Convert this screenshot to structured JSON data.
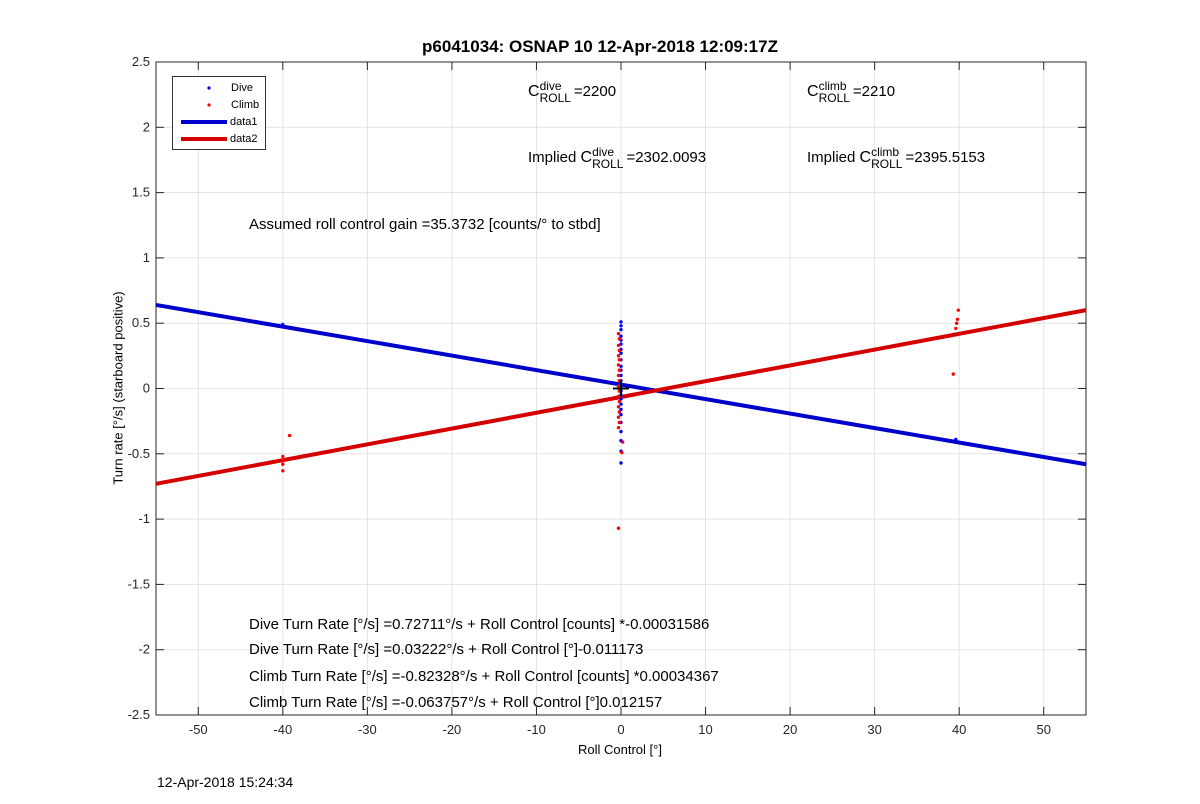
{
  "chart_data": {
    "type": "scatter",
    "title": "p6041034: OSNAP 10 12-Apr-2018 12:09:17Z",
    "xlabel": "Roll Control [°]",
    "ylabel": "Turn rate [°/s] (starboard positive)",
    "xlim": [
      -55,
      55
    ],
    "ylim": [
      -2.5,
      2.5
    ],
    "xticks": [
      -50,
      -40,
      -30,
      -20,
      -10,
      0,
      10,
      20,
      30,
      40,
      50
    ],
    "yticks": [
      -2.5,
      -2,
      -1.5,
      -1,
      -0.5,
      0,
      0.5,
      1,
      1.5,
      2,
      2.5
    ],
    "grid": true,
    "legend_position": "top-left",
    "series": [
      {
        "name": "Dive",
        "kind": "points",
        "color": "#0000ff",
        "points": [
          [
            -40,
            0.49
          ],
          [
            0,
            0.51
          ],
          [
            0,
            0.48
          ],
          [
            0,
            0.45
          ],
          [
            0,
            0.4
          ],
          [
            0,
            0.37
          ],
          [
            0,
            0.34
          ],
          [
            0,
            0.3
          ],
          [
            0,
            0.27
          ],
          [
            0,
            0.22
          ],
          [
            0,
            0.17
          ],
          [
            0,
            0.14
          ],
          [
            0,
            0.1
          ],
          [
            0,
            0.06
          ],
          [
            0,
            0.03
          ],
          [
            0,
            0.01
          ],
          [
            0,
            -0.02
          ],
          [
            0,
            -0.05
          ],
          [
            0,
            -0.08
          ],
          [
            0,
            -0.12
          ],
          [
            0,
            -0.16
          ],
          [
            0,
            -0.2
          ],
          [
            0,
            -0.26
          ],
          [
            0,
            -0.33
          ],
          [
            0,
            -0.4
          ],
          [
            0,
            -0.48
          ],
          [
            0,
            -0.57
          ],
          [
            39.6,
            -0.39
          ]
        ]
      },
      {
        "name": "Climb",
        "kind": "points",
        "color": "#ff0000",
        "points": [
          [
            -40,
            -0.52
          ],
          [
            -40,
            -0.55
          ],
          [
            -40,
            -0.58
          ],
          [
            -40,
            -0.63
          ],
          [
            -39.2,
            -0.36
          ],
          [
            -0.3,
            0.42
          ],
          [
            -0.2,
            0.38
          ],
          [
            -0.3,
            0.33
          ],
          [
            -0.2,
            0.29
          ],
          [
            -0.3,
            0.25
          ],
          [
            -0.2,
            0.22
          ],
          [
            -0.3,
            0.18
          ],
          [
            -0.2,
            0.14
          ],
          [
            -0.3,
            0.1
          ],
          [
            -0.2,
            0.06
          ],
          [
            -0.3,
            0.02
          ],
          [
            -0.2,
            -0.02
          ],
          [
            -0.3,
            -0.06
          ],
          [
            -0.2,
            -0.1
          ],
          [
            -0.3,
            -0.14
          ],
          [
            -0.2,
            -0.18
          ],
          [
            -0.3,
            -0.22
          ],
          [
            -0.2,
            -0.26
          ],
          [
            -0.3,
            -0.3
          ],
          [
            0.2,
            -0.41
          ],
          [
            0.1,
            -0.49
          ],
          [
            -0.3,
            -1.07
          ],
          [
            39.3,
            0.11
          ],
          [
            39.6,
            0.46
          ],
          [
            39.7,
            0.5
          ],
          [
            39.8,
            0.53
          ],
          [
            39.9,
            0.6
          ]
        ]
      },
      {
        "name": "data1",
        "kind": "line",
        "color": "#0000cc",
        "points": [
          [
            -55,
            0.64
          ],
          [
            55,
            -0.58
          ]
        ]
      },
      {
        "name": "data2",
        "kind": "line",
        "color": "#d40000",
        "points": [
          [
            -55,
            -0.73
          ],
          [
            55,
            0.6
          ]
        ]
      }
    ],
    "marker_plus": [
      0,
      0
    ]
  },
  "annotations": {
    "c_dive": {
      "sym": "C",
      "sup": "dive",
      "sub": "ROLL",
      "value": "=2200"
    },
    "c_climb": {
      "sym": "C",
      "sup": "climb",
      "sub": "ROLL",
      "value": "=2210"
    },
    "implied_dive": {
      "prefix": "Implied ",
      "sym": "C",
      "sup": "dive",
      "sub": "ROLL",
      "value": "=2302.0093"
    },
    "implied_climb": {
      "prefix": "Implied ",
      "sym": "C",
      "sup": "climb",
      "sub": "ROLL",
      "value": "=2395.5153"
    },
    "gain": "Assumed roll control gain =35.3732 [counts/° to stbd]",
    "eq1": "Dive Turn Rate [°/s] =0.72711°/s + Roll Control [counts] *-0.00031586",
    "eq2": "Dive Turn Rate [°/s] =0.03222°/s + Roll Control [°]-0.011173",
    "eq3": "Climb Turn Rate [°/s] =-0.82328°/s + Roll Control [counts] *0.00034367",
    "eq4": "Climb Turn Rate [°/s] =-0.063757°/s + Roll Control [°]0.012157"
  },
  "timestamp": "12-Apr-2018 15:24:34"
}
